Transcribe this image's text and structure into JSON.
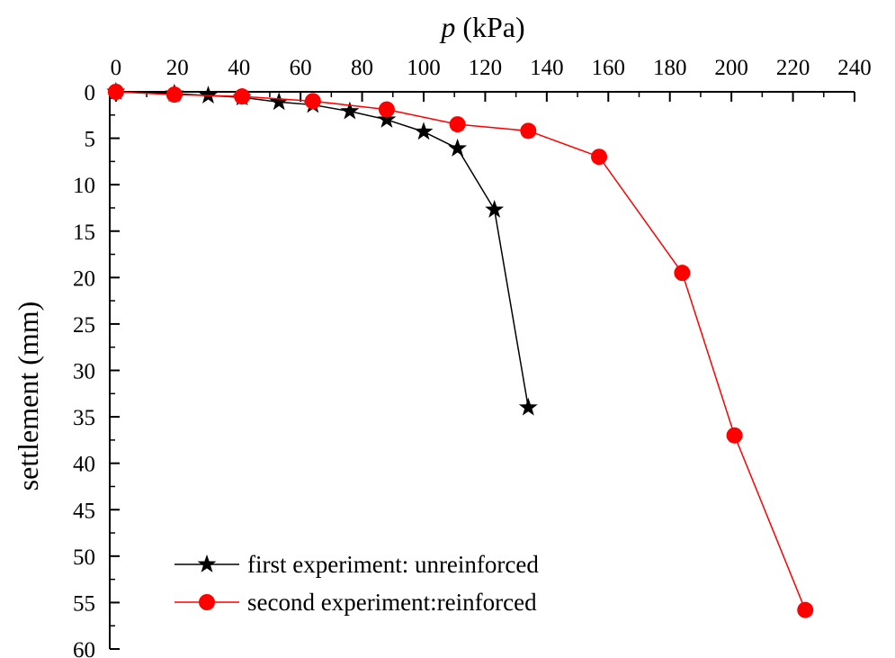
{
  "chart_data": {
    "type": "line",
    "x_axis": {
      "label_var": "p",
      "label_unit": "(kPa)",
      "position": "top",
      "range": [
        -2,
        240
      ],
      "ticks": [
        0,
        20,
        40,
        60,
        80,
        100,
        120,
        140,
        160,
        180,
        200,
        220,
        240
      ]
    },
    "y_axis": {
      "label": "settlement (mm)",
      "inverted": true,
      "range": [
        0,
        60
      ],
      "ticks": [
        0,
        5,
        10,
        15,
        20,
        25,
        30,
        35,
        40,
        45,
        50,
        55,
        60
      ]
    },
    "grid": false,
    "legend_position": "bottom-left",
    "series": [
      {
        "name": "first experiment: unreinforced",
        "marker": "star",
        "color": "#000000",
        "points": [
          [
            0,
            0
          ],
          [
            19,
            0.2
          ],
          [
            30,
            0.4
          ],
          [
            41,
            0.6
          ],
          [
            53,
            1.1
          ],
          [
            64,
            1.4
          ],
          [
            76,
            2.1
          ],
          [
            88,
            3.0
          ],
          [
            100,
            4.3
          ],
          [
            111,
            6.1
          ],
          [
            123,
            12.7
          ],
          [
            134,
            34.0
          ]
        ]
      },
      {
        "name": "second experiment:reinforced",
        "marker": "circle",
        "color": "#ff0000",
        "points": [
          [
            0,
            0
          ],
          [
            19,
            0.3
          ],
          [
            41,
            0.5
          ],
          [
            64,
            1.0
          ],
          [
            88,
            1.9
          ],
          [
            111,
            3.5
          ],
          [
            134,
            4.2
          ],
          [
            157,
            7.0
          ],
          [
            184,
            19.5
          ],
          [
            201,
            37.0
          ],
          [
            224,
            55.8
          ]
        ]
      }
    ]
  }
}
